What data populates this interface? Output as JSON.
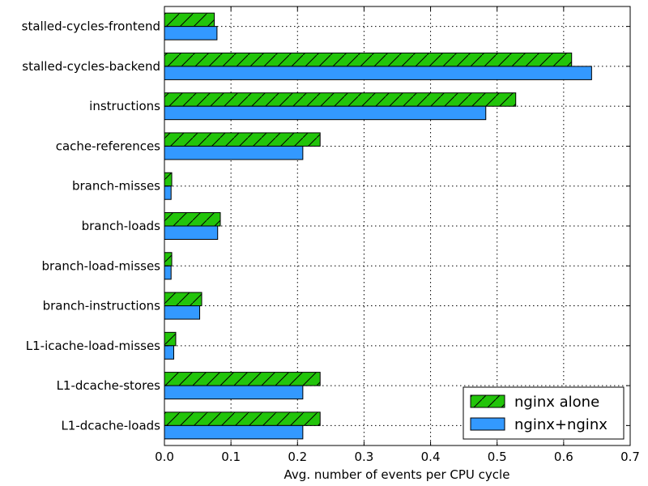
{
  "chart_data": {
    "type": "bar",
    "orientation": "horizontal",
    "categories": [
      "stalled-cycles-frontend",
      "stalled-cycles-backend",
      "instructions",
      "cache-references",
      "branch-misses",
      "branch-loads",
      "branch-load-misses",
      "branch-instructions",
      "L1-icache-load-misses",
      "L1-dcache-stores",
      "L1-dcache-loads"
    ],
    "series": [
      {
        "name": "nginx alone",
        "color": "#22c40a",
        "pattern": "hatch",
        "values": [
          0.075,
          0.612,
          0.528,
          0.234,
          0.011,
          0.084,
          0.011,
          0.056,
          0.017,
          0.234,
          0.234
        ]
      },
      {
        "name": "nginx+nginx",
        "color": "#3399ff",
        "pattern": "solid",
        "values": [
          0.079,
          0.642,
          0.483,
          0.208,
          0.01,
          0.08,
          0.01,
          0.053,
          0.014,
          0.208,
          0.208
        ]
      }
    ],
    "xlabel": "Avg. number of events per CPU cycle",
    "ylabel": "",
    "xlim": [
      0,
      0.7
    ],
    "xticks": [
      "0.0",
      "0.1",
      "0.2",
      "0.3",
      "0.4",
      "0.5",
      "0.6",
      "0.7"
    ],
    "grid": true,
    "legend": "bottom-right"
  }
}
